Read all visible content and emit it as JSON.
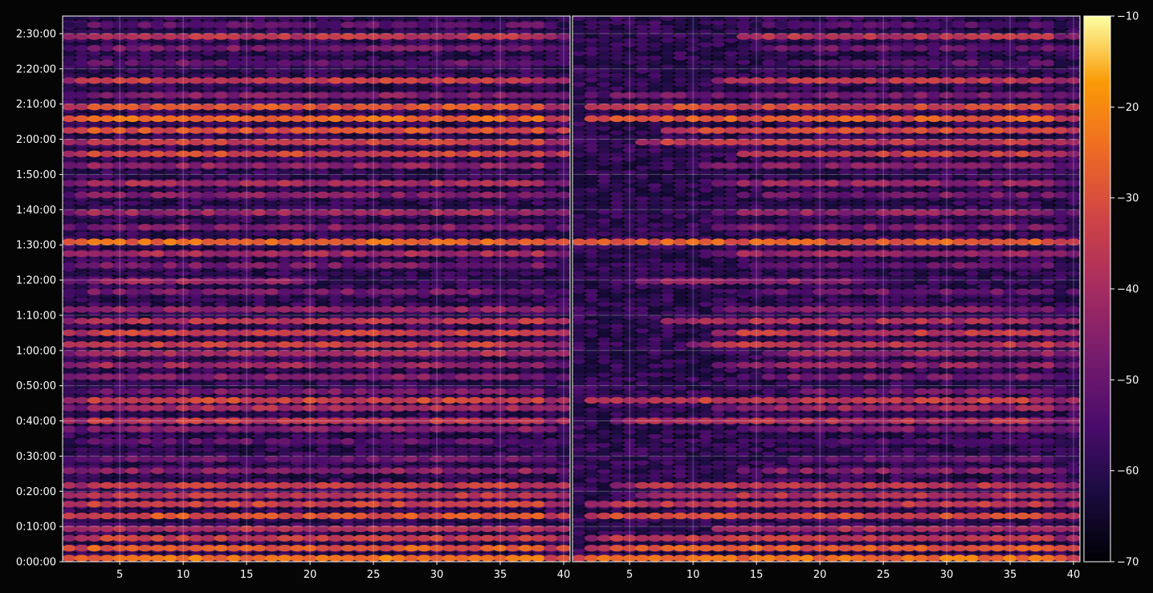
{
  "chart_data": [
    {
      "type": "heatmap",
      "panel": "left",
      "x_ticks": [
        "5",
        "10",
        "15",
        "20",
        "25",
        "30",
        "35",
        "40"
      ],
      "x_tick_values": [
        5,
        10,
        15,
        20,
        25,
        30,
        35,
        40
      ],
      "xlim": [
        1,
        40
      ],
      "y_ticks": [
        "0:00:00",
        "0:10:00",
        "0:20:00",
        "0:30:00",
        "0:40:00",
        "0:50:00",
        "1:00:00",
        "1:10:00",
        "1:20:00",
        "1:30:00",
        "1:40:00",
        "1:50:00",
        "2:00:00",
        "2:10:00",
        "2:20:00",
        "2:30:00"
      ],
      "y_tick_seconds": [
        0,
        600,
        1200,
        1800,
        2400,
        3000,
        3600,
        4200,
        4800,
        5400,
        6000,
        6600,
        7200,
        7800,
        8400,
        9000
      ],
      "ylim_seconds": [
        0,
        9300
      ],
      "grid": true,
      "value_range": [
        -70,
        -10
      ],
      "bands": [
        {
          "t": 60,
          "level": -24,
          "xmin": 1,
          "xmax": 40
        },
        {
          "t": 230,
          "level": -28,
          "xmin": 1,
          "xmax": 40
        },
        {
          "t": 400,
          "level": -34,
          "xmin": 1,
          "xmax": 40
        },
        {
          "t": 560,
          "level": -38,
          "xmin": 1,
          "xmax": 40
        },
        {
          "t": 780,
          "level": -30,
          "xmin": 1,
          "xmax": 40
        },
        {
          "t": 980,
          "level": -33,
          "xmin": 1,
          "xmax": 40
        },
        {
          "t": 1130,
          "level": -36,
          "xmin": 1,
          "xmax": 40
        },
        {
          "t": 1300,
          "level": -35,
          "xmin": 1,
          "xmax": 40
        },
        {
          "t": 1550,
          "level": -44,
          "xmin": 1,
          "xmax": 40
        },
        {
          "t": 1750,
          "level": -50,
          "xmin": 1,
          "xmax": 40
        },
        {
          "t": 2050,
          "level": -52,
          "xmin": 1,
          "xmax": 40
        },
        {
          "t": 2260,
          "level": -46,
          "xmin": 1,
          "xmax": 40
        },
        {
          "t": 2400,
          "level": -36,
          "xmin": 1,
          "xmax": 40
        },
        {
          "t": 2620,
          "level": -40,
          "xmin": 1,
          "xmax": 40
        },
        {
          "t": 2750,
          "level": -33,
          "xmin": 1,
          "xmax": 40
        },
        {
          "t": 2900,
          "level": -48,
          "xmin": 1,
          "xmax": 40
        },
        {
          "t": 3150,
          "level": -46,
          "xmin": 1,
          "xmax": 40
        },
        {
          "t": 3350,
          "level": -42,
          "xmin": 1,
          "xmax": 40
        },
        {
          "t": 3550,
          "level": -40,
          "xmin": 1,
          "xmax": 40
        },
        {
          "t": 3700,
          "level": -35,
          "xmin": 1,
          "xmax": 40
        },
        {
          "t": 3900,
          "level": -34,
          "xmin": 1,
          "xmax": 40
        },
        {
          "t": 4100,
          "level": -37,
          "xmin": 1,
          "xmax": 40
        },
        {
          "t": 4300,
          "level": -44,
          "xmin": 1,
          "xmax": 40
        },
        {
          "t": 4600,
          "level": -48,
          "xmin": 1,
          "xmax": 40
        },
        {
          "t": 4780,
          "level": -42,
          "xmin": 1,
          "xmax": 20
        },
        {
          "t": 5050,
          "level": -48,
          "xmin": 1,
          "xmax": 40
        },
        {
          "t": 5250,
          "level": -40,
          "xmin": 1,
          "xmax": 40
        },
        {
          "t": 5450,
          "level": -26,
          "xmin": 1,
          "xmax": 40
        },
        {
          "t": 5700,
          "level": -46,
          "xmin": 1,
          "xmax": 40
        },
        {
          "t": 5950,
          "level": -42,
          "xmin": 1,
          "xmax": 40
        },
        {
          "t": 6250,
          "level": -46,
          "xmin": 1,
          "xmax": 40
        },
        {
          "t": 6450,
          "level": -40,
          "xmin": 1,
          "xmax": 40
        },
        {
          "t": 6750,
          "level": -44,
          "xmin": 1,
          "xmax": 40
        },
        {
          "t": 6950,
          "level": -32,
          "xmin": 1,
          "xmax": 40
        },
        {
          "t": 7150,
          "level": -34,
          "xmin": 1,
          "xmax": 40
        },
        {
          "t": 7350,
          "level": -30,
          "xmin": 1,
          "xmax": 40
        },
        {
          "t": 7550,
          "level": -26,
          "xmin": 1,
          "xmax": 40
        },
        {
          "t": 7750,
          "level": -30,
          "xmin": 1,
          "xmax": 40
        },
        {
          "t": 7950,
          "level": -46,
          "xmin": 1,
          "xmax": 40
        },
        {
          "t": 8200,
          "level": -34,
          "xmin": 1,
          "xmax": 40
        },
        {
          "t": 8500,
          "level": -50,
          "xmin": 1,
          "xmax": 40
        },
        {
          "t": 8750,
          "level": -48,
          "xmin": 1,
          "xmax": 40
        },
        {
          "t": 8950,
          "level": -36,
          "xmin": 1,
          "xmax": 40
        },
        {
          "t": 9150,
          "level": -52,
          "xmin": 1,
          "xmax": 40
        }
      ]
    },
    {
      "type": "heatmap",
      "panel": "right",
      "x_ticks": [
        "5",
        "10",
        "15",
        "20",
        "25",
        "30",
        "35",
        "40"
      ],
      "x_tick_values": [
        5,
        10,
        15,
        20,
        25,
        30,
        35,
        40
      ],
      "xlim": [
        1,
        40
      ],
      "y_ticks": [],
      "ylim_seconds": [
        0,
        9300
      ],
      "grid": true,
      "value_range": [
        -70,
        -10
      ],
      "bands": [
        {
          "t": 60,
          "level": -24,
          "xmin": 1,
          "xmax": 40
        },
        {
          "t": 230,
          "level": -28,
          "xmin": 2,
          "xmax": 40
        },
        {
          "t": 400,
          "level": -36,
          "xmin": 2,
          "xmax": 40
        },
        {
          "t": 560,
          "level": -40,
          "xmin": 12,
          "xmax": 40
        },
        {
          "t": 780,
          "level": -32,
          "xmin": 2,
          "xmax": 40
        },
        {
          "t": 980,
          "level": -36,
          "xmin": 2,
          "xmax": 40
        },
        {
          "t": 1130,
          "level": -38,
          "xmin": 6,
          "xmax": 40
        },
        {
          "t": 1300,
          "level": -36,
          "xmin": 4,
          "xmax": 40
        },
        {
          "t": 1550,
          "level": -46,
          "xmin": 14,
          "xmax": 40
        },
        {
          "t": 1750,
          "level": -52,
          "xmin": 16,
          "xmax": 40
        },
        {
          "t": 2050,
          "level": -54,
          "xmin": 18,
          "xmax": 40
        },
        {
          "t": 2260,
          "level": -48,
          "xmin": 14,
          "xmax": 40
        },
        {
          "t": 2400,
          "level": -38,
          "xmin": 4,
          "xmax": 40
        },
        {
          "t": 2620,
          "level": -42,
          "xmin": 12,
          "xmax": 40
        },
        {
          "t": 2750,
          "level": -35,
          "xmin": 2,
          "xmax": 40
        },
        {
          "t": 2900,
          "level": -50,
          "xmin": 16,
          "xmax": 40
        },
        {
          "t": 3150,
          "level": -48,
          "xmin": 14,
          "xmax": 40
        },
        {
          "t": 3350,
          "level": -44,
          "xmin": 12,
          "xmax": 40
        },
        {
          "t": 3550,
          "level": -42,
          "xmin": 16,
          "xmax": 40
        },
        {
          "t": 3700,
          "level": -37,
          "xmin": 10,
          "xmax": 40
        },
        {
          "t": 3900,
          "level": -36,
          "xmin": 12,
          "xmax": 40
        },
        {
          "t": 4100,
          "level": -39,
          "xmin": 8,
          "xmax": 40
        },
        {
          "t": 4300,
          "level": -46,
          "xmin": 12,
          "xmax": 40
        },
        {
          "t": 4600,
          "level": -50,
          "xmin": 14,
          "xmax": 40
        },
        {
          "t": 4780,
          "level": -44,
          "xmin": 6,
          "xmax": 24
        },
        {
          "t": 5050,
          "level": -50,
          "xmin": 14,
          "xmax": 40
        },
        {
          "t": 5250,
          "level": -42,
          "xmin": 12,
          "xmax": 40
        },
        {
          "t": 5450,
          "level": -28,
          "xmin": 1,
          "xmax": 40
        },
        {
          "t": 5700,
          "level": -48,
          "xmin": 12,
          "xmax": 40
        },
        {
          "t": 5950,
          "level": -44,
          "xmin": 12,
          "xmax": 40
        },
        {
          "t": 6250,
          "level": -48,
          "xmin": 14,
          "xmax": 40
        },
        {
          "t": 6450,
          "level": -42,
          "xmin": 12,
          "xmax": 40
        },
        {
          "t": 6750,
          "level": -46,
          "xmin": 10,
          "xmax": 40
        },
        {
          "t": 6950,
          "level": -34,
          "xmin": 14,
          "xmax": 40
        },
        {
          "t": 7150,
          "level": -36,
          "xmin": 6,
          "xmax": 40
        },
        {
          "t": 7350,
          "level": -32,
          "xmin": 8,
          "xmax": 40
        },
        {
          "t": 7550,
          "level": -28,
          "xmin": 2,
          "xmax": 40
        },
        {
          "t": 7750,
          "level": -32,
          "xmin": 2,
          "xmax": 40
        },
        {
          "t": 7950,
          "level": -48,
          "xmin": 2,
          "xmax": 40
        },
        {
          "t": 8200,
          "level": -36,
          "xmin": 12,
          "xmax": 40
        },
        {
          "t": 8500,
          "level": -52,
          "xmin": 16,
          "xmax": 40
        },
        {
          "t": 8750,
          "level": -50,
          "xmin": 14,
          "xmax": 40
        },
        {
          "t": 8950,
          "level": -38,
          "xmin": 14,
          "xmax": 40
        },
        {
          "t": 9150,
          "level": -54,
          "xmin": 14,
          "xmax": 40
        }
      ]
    }
  ],
  "colorbar": {
    "colormap": "inferno",
    "ticks": [
      "−10",
      "−20",
      "−30",
      "−40",
      "−50",
      "−60",
      "−70"
    ],
    "tick_values": [
      -10,
      -20,
      -30,
      -40,
      -50,
      -60,
      -70
    ],
    "range": [
      -70,
      -10
    ]
  },
  "colors": {
    "background": "#050505",
    "axis_text": "#ffffff",
    "grid": "#ffffff"
  }
}
